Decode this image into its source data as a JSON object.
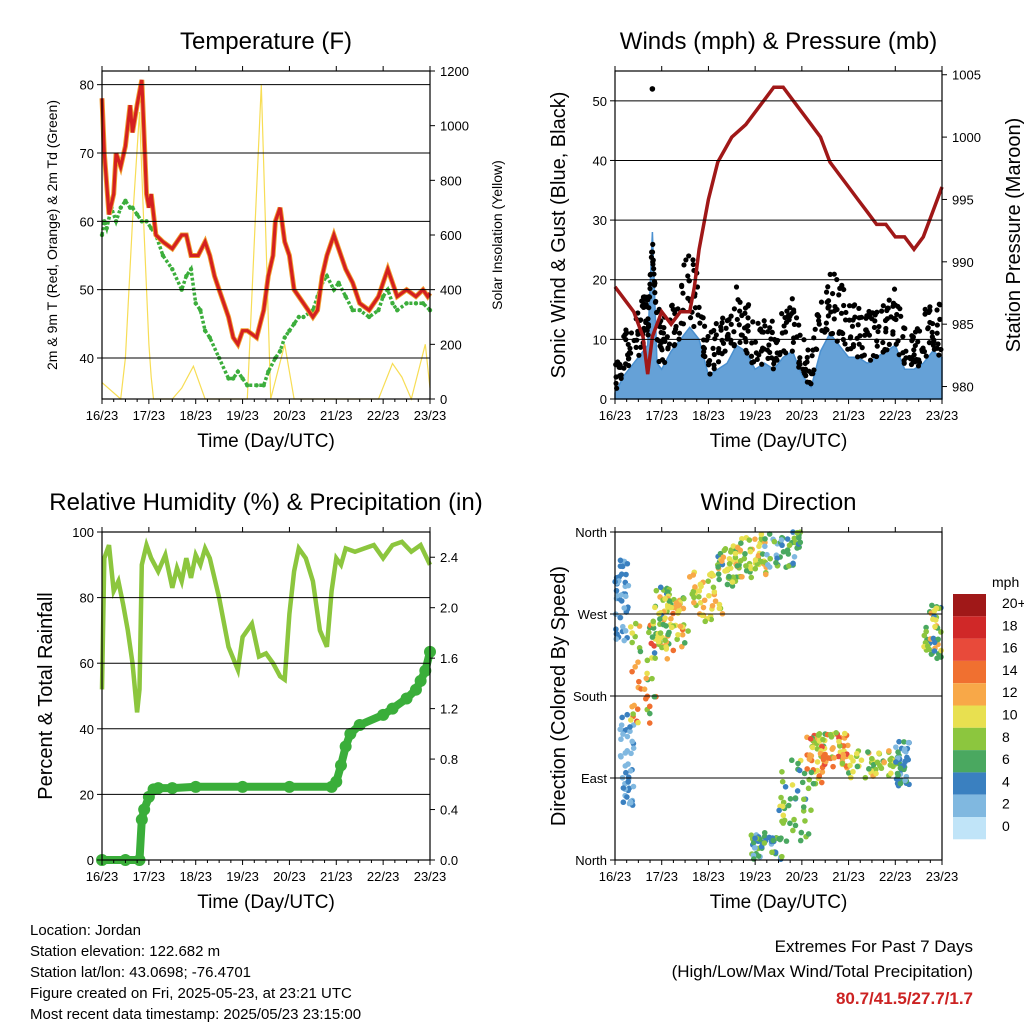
{
  "shared_x_ticks": [
    "16/23",
    "17/23",
    "18/23",
    "19/23",
    "20/23",
    "21/23",
    "22/23",
    "23/23"
  ],
  "footer": {
    "lines": [
      "Location: Jordan",
      "Station elevation: 122.682 m",
      "Station lat/lon: 43.0698; -76.4701",
      "Figure created on Fri, 2025-05-23, at 23:21 UTC",
      "Most recent data timestamp: 2025/05/23 23:15:00"
    ],
    "extremes_title": "Extremes For Past 7 Days",
    "extremes_sub": "(High/Low/Max Wind/Total Precipitation)",
    "extremes_values": "80.7/41.5/27.7/1.7",
    "extremes_color": "#cc2222"
  },
  "colors": {
    "temp_2m": "#d42020",
    "temp_9m": "#f0a030",
    "dewpoint": "#3cae3c",
    "solar": "#f7dd55",
    "gust": "#000000",
    "wind": "#4a90d0",
    "pressure": "#a01818",
    "rh": "#8cc63e",
    "precip": "#3aae3a"
  },
  "chart_data": [
    {
      "type": "line",
      "title": "Temperature (F)",
      "xlabel": "Time (Day/UTC)",
      "ylabel": "2m & 9m T (Red, Orange) & 2m Td (Green)",
      "y2label": "Solar Insolation (Yellow)",
      "ylim": [
        34,
        82
      ],
      "yticks": [
        40,
        50,
        60,
        70,
        80
      ],
      "y2lim": [
        0,
        1200
      ],
      "y2ticks": [
        0,
        200,
        400,
        600,
        800,
        1000,
        1200
      ],
      "xlim": [
        0,
        7
      ],
      "grid": true,
      "series": [
        {
          "key": "temp",
          "axis": "left",
          "x": [
            0,
            0.05,
            0.15,
            0.25,
            0.3,
            0.4,
            0.5,
            0.6,
            0.65,
            0.75,
            0.85,
            0.95,
            1.0,
            1.05,
            1.15,
            1.3,
            1.5,
            1.7,
            1.8,
            1.9,
            2.05,
            2.2,
            2.3,
            2.4,
            2.5,
            2.6,
            2.7,
            2.8,
            2.9,
            3.0,
            3.1,
            3.3,
            3.45,
            3.55,
            3.65,
            3.7,
            3.8,
            3.9,
            4.0,
            4.1,
            4.3,
            4.5,
            4.6,
            4.7,
            4.8,
            4.95,
            5.05,
            5.2,
            5.35,
            5.5,
            5.7,
            5.9,
            6.0,
            6.1,
            6.2,
            6.3,
            6.5,
            6.7,
            6.85,
            6.95,
            7.0
          ],
          "y": [
            78,
            70,
            61,
            64,
            70,
            68,
            71,
            77,
            73,
            77,
            80.7,
            64,
            62,
            64,
            58,
            57,
            56,
            58,
            58,
            55,
            55,
            57,
            55,
            52,
            50,
            48,
            46,
            43,
            42,
            44,
            44,
            43,
            47,
            52,
            55,
            60,
            62,
            57,
            55,
            50,
            48,
            46,
            47,
            52,
            55,
            58,
            56,
            53,
            51,
            48,
            47,
            49,
            51,
            53,
            51,
            49,
            50,
            49,
            50,
            49,
            49.5
          ]
        },
        {
          "key": "dew",
          "axis": "left",
          "x": [
            0,
            0.05,
            0.1,
            0.2,
            0.3,
            0.4,
            0.5,
            0.6,
            0.65,
            0.75,
            0.85,
            0.95,
            1.05,
            1.15,
            1.3,
            1.5,
            1.7,
            1.8,
            1.9,
            2.0,
            2.1,
            2.2,
            2.3,
            2.5,
            2.7,
            2.8,
            2.9,
            3.0,
            3.1,
            3.3,
            3.45,
            3.55,
            3.7,
            3.8,
            3.9,
            4.0,
            4.1,
            4.2,
            4.3,
            4.5,
            4.6,
            4.7,
            4.8,
            4.95,
            5.05,
            5.2,
            5.35,
            5.5,
            5.7,
            5.9,
            6.0,
            6.1,
            6.2,
            6.3,
            6.5,
            6.7,
            6.85,
            7.0
          ],
          "y": [
            58,
            60,
            59,
            62,
            60,
            62,
            63,
            62,
            62,
            61,
            60,
            60,
            59,
            58,
            55,
            53,
            50,
            52,
            53,
            48,
            47,
            44,
            43,
            40,
            37,
            37,
            38,
            37,
            36,
            36,
            36,
            38,
            40,
            41,
            43,
            44,
            45,
            46,
            46,
            47,
            49,
            51,
            52,
            50,
            51,
            49,
            47,
            47,
            46,
            47,
            49,
            50,
            48,
            47,
            48,
            48,
            48,
            47
          ]
        },
        {
          "key": "solar",
          "axis": "right",
          "x": [
            0,
            0.4,
            0.5,
            0.65,
            0.8,
            0.9,
            1.0,
            1.05,
            1.1,
            1.3,
            1.5,
            1.7,
            1.95,
            2.2,
            2.5,
            2.8,
            3.1,
            3.4,
            3.6,
            3.9,
            4.1,
            4.3,
            4.6,
            4.95,
            5.2,
            5.5,
            5.9,
            6.2,
            6.4,
            6.6,
            6.9,
            7.0
          ],
          "y": [
            60,
            0,
            150,
            650,
            1050,
            600,
            200,
            80,
            0,
            0,
            0,
            40,
            120,
            0,
            0,
            0,
            0,
            1150,
            0,
            200,
            0,
            0,
            0,
            0,
            0,
            0,
            0,
            130,
            80,
            0,
            200,
            40
          ]
        }
      ]
    },
    {
      "type": "line",
      "title": "Winds (mph) & Pressure (mb)",
      "xlabel": "Time (Day/UTC)",
      "ylabel": "Sonic Wind & Gust (Blue, Black)",
      "y2label": "Station Pressure (Maroon)",
      "ylim": [
        0,
        55
      ],
      "yticks": [
        0,
        10,
        20,
        30,
        40,
        50
      ],
      "y2lim": [
        979,
        1005.3
      ],
      "y2ticks": [
        980,
        985,
        990,
        995,
        1000,
        1005
      ],
      "xlim": [
        0,
        7
      ],
      "grid": true,
      "series": [
        {
          "key": "gust",
          "axis": "left",
          "x": [
            0,
            0.2,
            0.4,
            0.6,
            0.7,
            0.8,
            0.9,
            1.0,
            1.2,
            1.4,
            1.6,
            1.8,
            2.0,
            2.2,
            2.4,
            2.6,
            2.8,
            3.0,
            3.2,
            3.4,
            3.6,
            3.8,
            4.0,
            4.2,
            4.4,
            4.6,
            4.8,
            5.0,
            5.2,
            5.4,
            5.6,
            5.8,
            6.0,
            6.2,
            6.4,
            6.6,
            6.8,
            7.0
          ],
          "y": [
            3,
            8,
            12,
            14,
            16,
            20,
            14,
            10,
            15,
            19,
            22,
            18,
            8,
            10,
            12,
            16,
            14,
            10,
            11,
            10,
            12,
            14,
            8,
            5,
            15,
            20,
            17,
            14,
            13,
            12,
            12,
            14,
            16,
            10,
            9,
            12,
            15,
            13
          ]
        },
        {
          "key": "wind",
          "axis": "left",
          "x": [
            0,
            0.2,
            0.4,
            0.6,
            0.7,
            0.8,
            0.9,
            1.0,
            1.2,
            1.4,
            1.6,
            1.8,
            2.0,
            2.2,
            2.4,
            2.6,
            2.8,
            3.0,
            3.2,
            3.4,
            3.6,
            3.8,
            4.0,
            4.2,
            4.4,
            4.6,
            4.8,
            5.0,
            5.2,
            5.4,
            5.6,
            5.8,
            6.0,
            6.2,
            6.4,
            6.6,
            6.8,
            7.0
          ],
          "y": [
            1,
            4,
            6,
            8,
            9,
            28,
            6,
            5,
            8,
            10,
            12,
            10,
            4,
            5,
            6,
            9,
            8,
            5,
            6,
            5,
            7,
            8,
            4,
            2,
            8,
            11,
            9,
            7,
            7,
            6,
            7,
            8,
            9,
            5,
            5,
            6,
            8,
            7
          ]
        },
        {
          "key": "pressure",
          "axis": "right",
          "x": [
            0,
            0.2,
            0.4,
            0.6,
            0.7,
            0.8,
            1.0,
            1.2,
            1.4,
            1.6,
            1.7,
            1.8,
            2.0,
            2.2,
            2.5,
            2.8,
            3.0,
            3.2,
            3.4,
            3.6,
            3.8,
            4.0,
            4.2,
            4.4,
            4.6,
            4.8,
            5.0,
            5.2,
            5.4,
            5.6,
            5.8,
            6.0,
            6.2,
            6.4,
            6.6,
            6.8,
            7.0
          ],
          "y": [
            988,
            987,
            986,
            984,
            981,
            984,
            986,
            985,
            986,
            986,
            988,
            991,
            995,
            998,
            1000,
            1001,
            1002,
            1003,
            1004,
            1004,
            1003,
            1002,
            1001,
            1000,
            998,
            997,
            996,
            995,
            994,
            993,
            993,
            992,
            992,
            991,
            992,
            994,
            996
          ]
        },
        {
          "key": "gust_max",
          "axis": "left",
          "x": [
            0.8
          ],
          "y": [
            52
          ]
        }
      ]
    },
    {
      "type": "line",
      "title": "Relative Humidity (%) & Precipitation (in)",
      "xlabel": "Time (Day/UTC)",
      "ylabel": "Percent & Total Rainfall",
      "ylim": [
        0,
        100
      ],
      "yticks": [
        0,
        20,
        40,
        60,
        80,
        100
      ],
      "y2lim": [
        0,
        2.6
      ],
      "y2ticks": [
        0.0,
        0.4,
        0.8,
        1.2,
        1.6,
        2.0,
        2.4
      ],
      "xlim": [
        0,
        7
      ],
      "grid": true,
      "series": [
        {
          "key": "rh",
          "axis": "left",
          "x": [
            0,
            0.05,
            0.15,
            0.25,
            0.35,
            0.45,
            0.55,
            0.65,
            0.75,
            0.8,
            0.85,
            0.95,
            1.05,
            1.2,
            1.35,
            1.5,
            1.6,
            1.7,
            1.8,
            1.9,
            2.0,
            2.1,
            2.2,
            2.3,
            2.5,
            2.7,
            2.9,
            3.0,
            3.2,
            3.35,
            3.5,
            3.65,
            3.8,
            3.9,
            4.0,
            4.1,
            4.2,
            4.35,
            4.5,
            4.65,
            4.8,
            4.9,
            5.0,
            5.1,
            5.2,
            5.4,
            5.6,
            5.8,
            6.0,
            6.2,
            6.4,
            6.6,
            6.8,
            7.0
          ],
          "y": [
            52,
            92,
            96,
            82,
            85,
            78,
            70,
            60,
            45,
            52,
            90,
            96,
            92,
            88,
            93,
            83,
            89,
            85,
            92,
            86,
            93,
            90,
            95,
            92,
            80,
            65,
            58,
            68,
            72,
            62,
            63,
            60,
            56,
            55,
            75,
            88,
            95,
            92,
            85,
            70,
            65,
            82,
            92,
            90,
            95,
            94,
            95,
            96,
            92,
            96,
            97,
            94,
            96,
            90
          ]
        },
        {
          "key": "precip",
          "axis": "right",
          "x": [
            0,
            0.5,
            0.8,
            0.85,
            0.9,
            1.0,
            1.1,
            1.2,
            1.5,
            2.0,
            3.0,
            4.0,
            4.9,
            5.0,
            5.1,
            5.2,
            5.3,
            5.5,
            6.0,
            6.2,
            6.5,
            6.7,
            6.8,
            6.9,
            7.0
          ],
          "y": [
            0,
            0,
            0,
            0.32,
            0.4,
            0.5,
            0.56,
            0.57,
            0.57,
            0.58,
            0.58,
            0.58,
            0.58,
            0.62,
            0.75,
            0.9,
            1.0,
            1.07,
            1.15,
            1.2,
            1.28,
            1.35,
            1.42,
            1.5,
            1.65
          ]
        }
      ]
    },
    {
      "type": "scatter",
      "title": "Wind Direction",
      "xlabel": "Time (Day/UTC)",
      "ylabel": "Direction (Colored By Speed)",
      "ylim": [
        0,
        360
      ],
      "yticks": [
        0,
        90,
        180,
        270,
        360
      ],
      "ytick_labels": [
        "North",
        "East",
        "South",
        "West",
        "North"
      ],
      "xlim": [
        0,
        7
      ],
      "grid": true,
      "colorbar": {
        "title": "mph",
        "labels": [
          "20+",
          "18",
          "16",
          "14",
          "12",
          "10",
          "8",
          "6",
          "4",
          "2",
          "0"
        ],
        "colors": [
          "#a01818",
          "#d02828",
          "#e84a3a",
          "#f07030",
          "#f8a848",
          "#e8e050",
          "#8cc63e",
          "#4aa860",
          "#3a80c0",
          "#80b8e0",
          "#c0e4f8"
        ]
      },
      "clusters": [
        {
          "x": [
            0.0,
            0.3
          ],
          "y": [
            240,
            330
          ],
          "speed": [
            2,
            5
          ]
        },
        {
          "x": [
            0.1,
            0.4
          ],
          "y": [
            60,
            160
          ],
          "speed": [
            1,
            4
          ]
        },
        {
          "x": [
            0.3,
            0.9
          ],
          "y": [
            150,
            260
          ],
          "speed": [
            6,
            16
          ]
        },
        {
          "x": [
            0.8,
            1.2
          ],
          "y": [
            220,
            300
          ],
          "speed": [
            4,
            12
          ]
        },
        {
          "x": [
            1.0,
            1.6
          ],
          "y": [
            230,
            290
          ],
          "speed": [
            6,
            14
          ]
        },
        {
          "x": [
            1.6,
            2.3
          ],
          "y": [
            260,
            320
          ],
          "speed": [
            6,
            12
          ]
        },
        {
          "x": [
            2.2,
            2.7
          ],
          "y": [
            300,
            345
          ],
          "speed": [
            4,
            12
          ]
        },
        {
          "x": [
            2.6,
            3.3
          ],
          "y": [
            310,
            360
          ],
          "speed": [
            6,
            12
          ]
        },
        {
          "x": [
            3.2,
            4.0
          ],
          "y": [
            320,
            360
          ],
          "speed": [
            2,
            8
          ]
        },
        {
          "x": [
            2.9,
            3.6
          ],
          "y": [
            0,
            30
          ],
          "speed": [
            2,
            8
          ]
        },
        {
          "x": [
            3.5,
            4.2
          ],
          "y": [
            20,
            110
          ],
          "speed": [
            4,
            10
          ]
        },
        {
          "x": [
            4.1,
            4.5
          ],
          "y": [
            80,
            140
          ],
          "speed": [
            6,
            16
          ]
        },
        {
          "x": [
            4.4,
            5.0
          ],
          "y": [
            140,
            100
          ],
          "speed": [
            8,
            16
          ]
        },
        {
          "x": [
            5.0,
            6.1
          ],
          "y": [
            90,
            120
          ],
          "speed": [
            6,
            12
          ]
        },
        {
          "x": [
            6.0,
            6.3
          ],
          "y": [
            80,
            130
          ],
          "speed": [
            2,
            6
          ]
        },
        {
          "x": [
            6.6,
            7.0
          ],
          "y": [
            220,
            280
          ],
          "speed": [
            4,
            12
          ]
        }
      ]
    }
  ]
}
